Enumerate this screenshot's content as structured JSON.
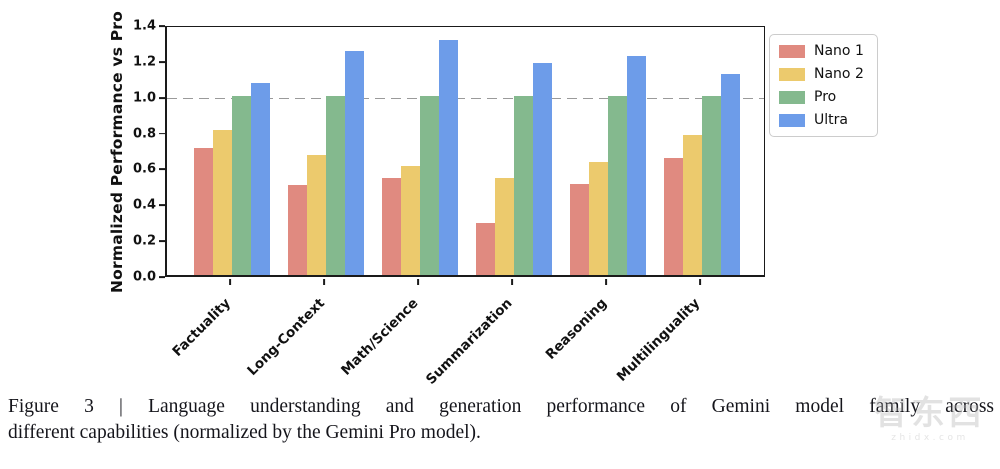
{
  "chart_data": {
    "type": "bar",
    "title": "",
    "xlabel": "",
    "ylabel": "Normalized Performance vs Pro",
    "ylim": [
      0,
      1.4
    ],
    "ytick_labels": [
      "0.0",
      "0.2",
      "0.4",
      "0.6",
      "0.8",
      "1.0",
      "1.2",
      "1.4"
    ],
    "grid": false,
    "legend_position": "upper right, outside plot",
    "reference_line": {
      "y": 1.0,
      "style": "dashed",
      "color": "#9a9a9a"
    },
    "categories": [
      "Factuality",
      "Long-Context",
      "Math/Science",
      "Summarization",
      "Reasoning",
      "Multilinguality"
    ],
    "series": [
      {
        "name": "Nano 1",
        "color": "#E08A80",
        "values": [
          0.71,
          0.5,
          0.54,
          0.29,
          0.51,
          0.65
        ]
      },
      {
        "name": "Nano 2",
        "color": "#ECCA6D",
        "values": [
          0.81,
          0.67,
          0.61,
          0.54,
          0.63,
          0.78
        ]
      },
      {
        "name": "Pro",
        "color": "#84B98E",
        "values": [
          1.0,
          1.0,
          1.0,
          1.0,
          1.0,
          1.0
        ]
      },
      {
        "name": "Ultra",
        "color": "#6D9CE9",
        "values": [
          1.07,
          1.25,
          1.31,
          1.18,
          1.22,
          1.12
        ]
      }
    ]
  },
  "caption": {
    "line1": "Figure 3 | Language understanding and generation performance of Gemini model family across",
    "line2": "different capabilities (normalized by the Gemini Pro model)."
  },
  "watermark": {
    "logo_text": "智东西",
    "subtext": "zhidx.com"
  }
}
